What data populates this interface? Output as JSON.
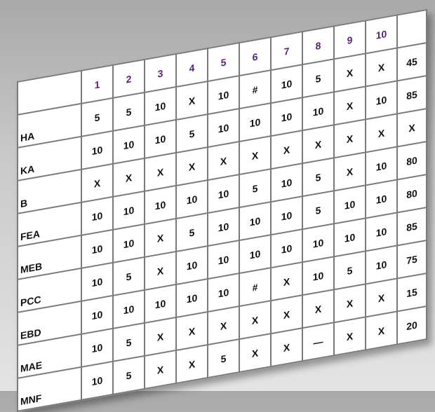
{
  "table": {
    "column_headers": [
      "1",
      "2",
      "3",
      "4",
      "5",
      "6",
      "7",
      "8",
      "9",
      "10"
    ],
    "rows": [
      {
        "label": "HA",
        "cells": [
          "5",
          "5",
          "10",
          "X",
          "10",
          "#",
          "10",
          "5",
          "X",
          "X"
        ],
        "total": "45"
      },
      {
        "label": "KA",
        "cells": [
          "10",
          "10",
          "10",
          "5",
          "10",
          "10",
          "10",
          "10",
          "X",
          "10"
        ],
        "total": "85"
      },
      {
        "label": "B",
        "cells": [
          "X",
          "X",
          "X",
          "X",
          "X",
          "X",
          "X",
          "X",
          "X",
          "X"
        ],
        "total": "X"
      },
      {
        "label": "FEA",
        "cells": [
          "10",
          "10",
          "10",
          "10",
          "10",
          "5",
          "10",
          "5",
          "X",
          "10"
        ],
        "total": "80"
      },
      {
        "label": "MEB",
        "cells": [
          "10",
          "10",
          "X",
          "5",
          "10",
          "10",
          "10",
          "5",
          "10",
          "10"
        ],
        "total": "80"
      },
      {
        "label": "PCC",
        "cells": [
          "10",
          "5",
          "X",
          "10",
          "10",
          "10",
          "10",
          "10",
          "10",
          "10"
        ],
        "total": "85"
      },
      {
        "label": "EBD",
        "cells": [
          "10",
          "10",
          "10",
          "10",
          "10",
          "#",
          "X",
          "10",
          "5",
          "10"
        ],
        "total": "75"
      },
      {
        "label": "MAE",
        "cells": [
          "10",
          "5",
          "X",
          "X",
          "X",
          "X",
          "X",
          "X",
          "X",
          "X"
        ],
        "total": "15"
      },
      {
        "label": "MNF",
        "cells": [
          "10",
          "5",
          "X",
          "X",
          "5",
          "X",
          "X",
          "—",
          "X",
          "X"
        ],
        "total": "20"
      }
    ]
  },
  "colors": {
    "header_text": "#5b1d7e",
    "grid": "#7a7a7a"
  }
}
